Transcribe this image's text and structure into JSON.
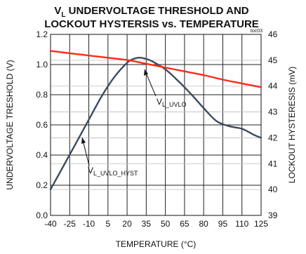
{
  "chart_data": {
    "type": "line",
    "title_line1_main": "V",
    "title_line1_sub": "L",
    "title_line1_rest": " UNDERVOLTAGE THRESHOLD AND",
    "title_line2": "LOCKOUT HYSTERSIS vs. TEMPERATURE",
    "figure_id": "toc03",
    "xlabel": "TEMPERATURE (°C)",
    "ylabel_left": "UNDERVOLTAGE TRESHOLD (V)",
    "ylabel_right": "LOCKOUT HYSTERESIS (mV)",
    "xlim": [
      -40,
      125
    ],
    "ylim_left": [
      0.0,
      1.2
    ],
    "ylim_right": [
      39,
      46
    ],
    "x_ticks": [
      "-40",
      "-25",
      "-10",
      "5",
      "20",
      "35",
      "50",
      "65",
      "80",
      "95",
      "110",
      "125"
    ],
    "y_left_ticks": [
      "0.0",
      "0.2",
      "0.4",
      "0.6",
      "0.8",
      "1.0",
      "1.2"
    ],
    "y_right_ticks": [
      "39",
      "40",
      "41",
      "42",
      "43",
      "44",
      "45",
      "46"
    ],
    "grid": true,
    "series": [
      {
        "name_main": "V",
        "name_sub": "L_UVLO",
        "axis": "left",
        "color": "#ff2a1a",
        "x": [
          -40,
          -25,
          -10,
          5,
          20,
          35,
          50,
          65,
          80,
          95,
          110,
          125
        ],
        "y": [
          1.09,
          1.075,
          1.06,
          1.045,
          1.03,
          1.005,
          0.98,
          0.955,
          0.93,
          0.9,
          0.875,
          0.85
        ]
      },
      {
        "name_main": "V",
        "name_sub": "L_UVLO_HYST",
        "axis": "right",
        "color": "#3d4a60",
        "x": [
          -40,
          -30,
          -20,
          -10,
          0,
          10,
          20,
          25,
          30,
          35,
          40,
          50,
          60,
          70,
          80,
          90,
          100,
          110,
          120,
          125
        ],
        "y": [
          40.0,
          40.9,
          41.8,
          42.7,
          43.6,
          44.35,
          44.9,
          45.05,
          45.1,
          45.05,
          44.95,
          44.65,
          44.2,
          43.7,
          43.15,
          42.65,
          42.45,
          42.35,
          42.1,
          42.0
        ]
      }
    ]
  }
}
